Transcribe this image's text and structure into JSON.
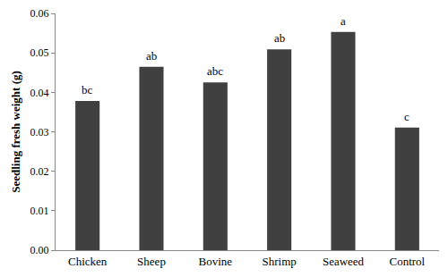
{
  "chart_data": {
    "type": "bar",
    "y_label": "Seedling fresh weight (g)",
    "categories": [
      "Chicken",
      "Sheep",
      "Bovine",
      "Shrimp",
      "Seaweed",
      "Control"
    ],
    "values": [
      0.0378,
      0.0465,
      0.0425,
      0.0509,
      0.0553,
      0.0311
    ],
    "annotations": [
      "bc",
      "ab",
      "abc",
      "ab",
      "a",
      "c"
    ],
    "color": "#404040",
    "ylim": [
      0,
      0.06
    ],
    "yticks": [
      {
        "value": 0,
        "label": "0.00"
      },
      {
        "value": 0.01,
        "label": "0.01"
      },
      {
        "value": 0.02,
        "label": "0.02"
      },
      {
        "value": 0.03,
        "label": "0.03"
      },
      {
        "value": 0.04,
        "label": "0.04"
      },
      {
        "value": 0.05,
        "label": "0.05"
      },
      {
        "value": 0.06,
        "label": "0.06"
      }
    ],
    "grid": false
  }
}
